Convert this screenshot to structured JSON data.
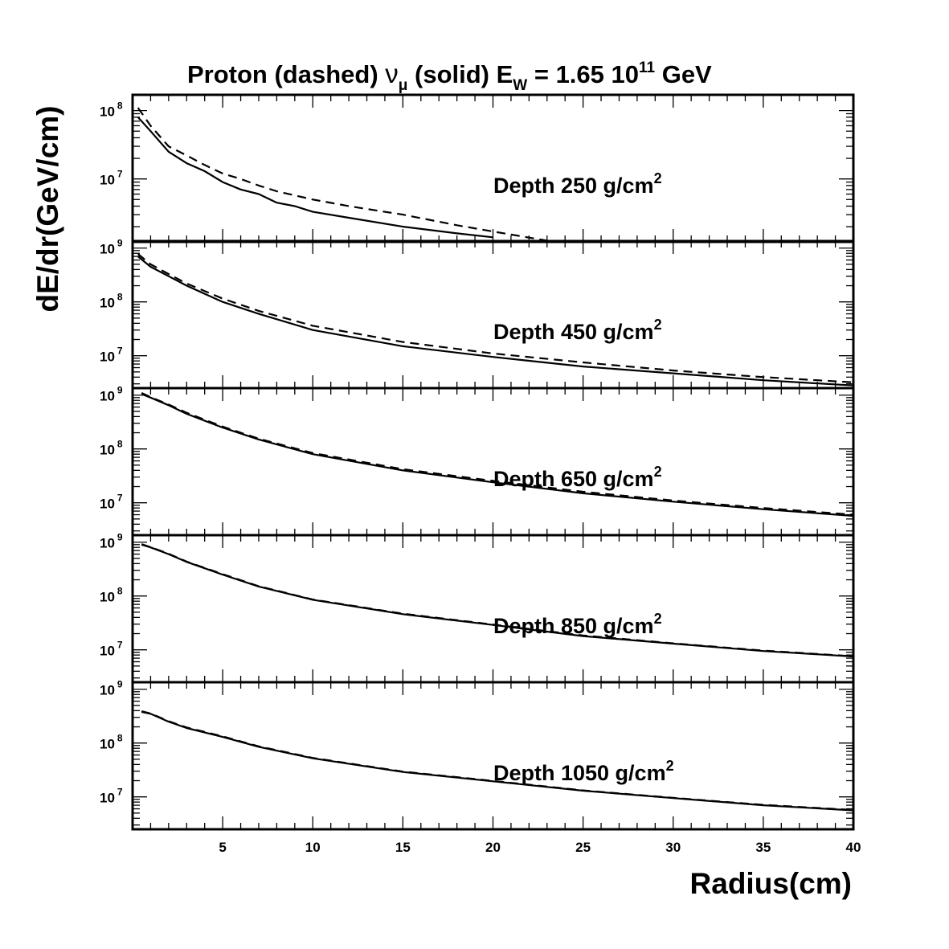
{
  "chart_data": {
    "type": "line",
    "title": {
      "pre": "Proton (dashed) ",
      "nu": "ν",
      "nu_sub": "μ",
      "mid": " (solid) E",
      "e_sub": "W",
      "value": " = 1.65 10",
      "exp": "11",
      "unit": " GeV"
    },
    "xlabel": "Radius(cm)",
    "ylabel": "dE/dr(GeV/cm)",
    "xlim": [
      0,
      40
    ],
    "x_ticks": [
      "5",
      "10",
      "15",
      "20",
      "25",
      "30",
      "35",
      "40"
    ],
    "y_scale": "log",
    "grid": false,
    "panels": [
      {
        "label": "Depth 250 g/cm",
        "label_exp": "2",
        "ylim": [
          1200000,
          170000000
        ],
        "y_tick_labels": [
          {
            "base": "10",
            "exp": "8"
          },
          {
            "base": "10",
            "exp": "7"
          }
        ],
        "series": [
          {
            "style": "solid",
            "x": [
              0.3,
              1,
              2,
              3,
              4,
              5,
              6,
              7,
              8,
              9,
              10,
              12,
              15,
              18,
              20
            ],
            "y": [
              80000000,
              50000000,
              25000000,
              17000000,
              13000000,
              9000000,
              7000000,
              6000000,
              4500000,
              4000000,
              3300000,
              2700000,
              2000000,
              1600000,
              1400000
            ]
          },
          {
            "style": "dashed",
            "x": [
              0.3,
              1,
              2,
              3,
              4,
              5,
              6,
              7,
              8,
              10,
              12,
              15,
              18,
              20,
              23
            ],
            "y": [
              110000000,
              60000000,
              30000000,
              22000000,
              16000000,
              12000000,
              10000000,
              8000000,
              6600000,
              5000000,
              4000000,
              3000000,
              2100000,
              1700000,
              1250000
            ]
          }
        ]
      },
      {
        "label": "Depth 450 g/cm",
        "label_exp": "2",
        "ylim": [
          2500000,
          1350000000
        ],
        "y_tick_labels": [
          {
            "base": "10",
            "exp": "9"
          },
          {
            "base": "10",
            "exp": "8"
          },
          {
            "base": "10",
            "exp": "7"
          }
        ],
        "series": [
          {
            "style": "solid",
            "x": [
              0.3,
              1,
              2,
              3,
              5,
              7,
              10,
              15,
              20,
              25,
              30,
              35,
              40
            ],
            "y": [
              700000000,
              450000000,
              300000000,
              200000000,
              100000000,
              60000000,
              30000000,
              15000000,
              9500000,
              6300000,
              4700000,
              3500000,
              2800000
            ]
          },
          {
            "style": "dashed",
            "x": [
              0.3,
              1,
              2,
              3,
              5,
              7,
              10,
              15,
              20,
              25,
              30,
              35,
              40
            ],
            "y": [
              780000000,
              500000000,
              330000000,
              220000000,
              115000000,
              68000000,
              36000000,
              18000000,
              11000000,
              7500000,
              5300000,
              4000000,
              3200000
            ]
          }
        ]
      },
      {
        "label": "Depth 650 g/cm",
        "label_exp": "2",
        "ylim": [
          2500000,
          1350000000
        ],
        "y_tick_labels": [
          {
            "base": "10",
            "exp": "9"
          },
          {
            "base": "10",
            "exp": "8"
          },
          {
            "base": "10",
            "exp": "7"
          }
        ],
        "series": [
          {
            "style": "solid",
            "x": [
              0.5,
              1,
              2,
              3,
              5,
              7,
              10,
              15,
              20,
              25,
              30,
              35,
              40
            ],
            "y": [
              1050000000,
              900000000,
              650000000,
              450000000,
              250000000,
              150000000,
              80000000,
              40000000,
              24000000,
              15000000,
              10500000,
              7600000,
              5700000
            ]
          },
          {
            "style": "dashed",
            "x": [
              0.5,
              1,
              2,
              3,
              5,
              7,
              10,
              15,
              20,
              25,
              30,
              35,
              40
            ],
            "y": [
              1100000000,
              920000000,
              670000000,
              470000000,
              260000000,
              155000000,
              84000000,
              42000000,
              25500000,
              16000000,
              11000000,
              8000000,
              6000000
            ]
          }
        ]
      },
      {
        "label": "Depth 850 g/cm",
        "label_exp": "2",
        "ylim": [
          2500000,
          1350000000
        ],
        "y_tick_labels": [
          {
            "base": "10",
            "exp": "9"
          },
          {
            "base": "10",
            "exp": "8"
          },
          {
            "base": "10",
            "exp": "7"
          }
        ],
        "series": [
          {
            "style": "solid",
            "x": [
              0.5,
              1,
              2,
              3,
              5,
              7,
              10,
              15,
              20,
              25,
              30,
              35,
              40
            ],
            "y": [
              900000000,
              800000000,
              600000000,
              430000000,
              250000000,
              150000000,
              85000000,
              46000000,
              29000000,
              18000000,
              13000000,
              9500000,
              7500000
            ]
          },
          {
            "style": "dashed",
            "x": [
              0.5,
              1,
              2,
              3,
              5,
              7,
              10,
              15,
              20,
              25,
              30,
              35,
              40
            ],
            "y": [
              920000000,
              810000000,
              610000000,
              435000000,
              255000000,
              152000000,
              86000000,
              47000000,
              29500000,
              18500000,
              13200000,
              9700000,
              7600000
            ]
          }
        ]
      },
      {
        "label": "Depth 1050 g/cm",
        "label_exp": "2",
        "ylim": [
          2500000,
          1350000000
        ],
        "y_tick_labels": [
          {
            "base": "10",
            "exp": "9"
          },
          {
            "base": "10",
            "exp": "8"
          },
          {
            "base": "10",
            "exp": "7"
          }
        ],
        "series": [
          {
            "style": "solid",
            "x": [
              0.5,
              1,
              2,
              3,
              5,
              7,
              10,
              15,
              20,
              25,
              30,
              35,
              40
            ],
            "y": [
              380000000,
              350000000,
              250000000,
              190000000,
              130000000,
              85000000,
              52000000,
              29000000,
              19500000,
              13000000,
              9500000,
              7000000,
              5600000
            ]
          },
          {
            "style": "dashed",
            "x": [
              0.5,
              1,
              2,
              3,
              5,
              7,
              10,
              15,
              20,
              25,
              30,
              35,
              40
            ],
            "y": [
              390000000,
              355000000,
              255000000,
              195000000,
              133000000,
              87000000,
              53000000,
              29500000,
              19800000,
              13200000,
              9600000,
              7100000,
              5700000
            ]
          }
        ]
      }
    ]
  }
}
